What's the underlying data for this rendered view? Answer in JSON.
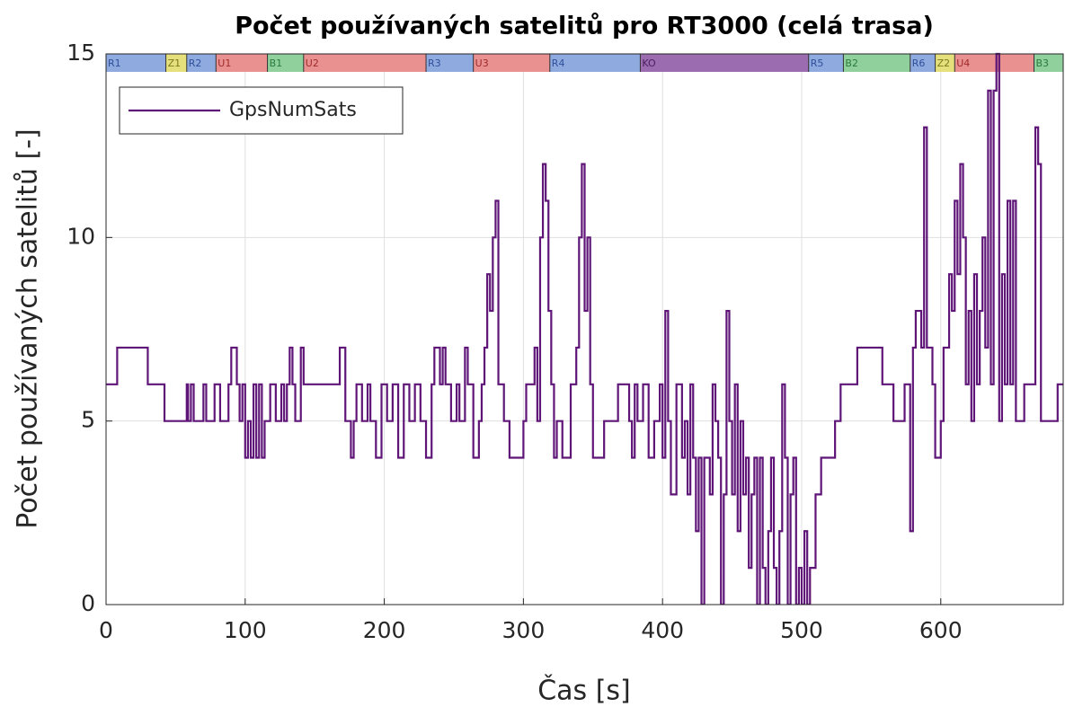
{
  "chart_data": {
    "type": "line",
    "title": "Počet používaných satelitů pro RT3000 (celá trasa)",
    "xlabel": "Čas [s]",
    "ylabel": "Počet používaných satelitů [-]",
    "xlim": [
      0,
      688
    ],
    "ylim": [
      0,
      15
    ],
    "xticks": [
      0,
      100,
      200,
      300,
      400,
      500,
      600
    ],
    "yticks": [
      0,
      5,
      10,
      15
    ],
    "grid": true,
    "legend": "upper left",
    "step": true,
    "series": [
      {
        "name": "GpsNumSats",
        "color": "#5e1577",
        "x": [
          0,
          8,
          30,
          42,
          58,
          59,
          61,
          63,
          70,
          72,
          78,
          82,
          88,
          90,
          94,
          96,
          98,
          100,
          102,
          104,
          106,
          108,
          110,
          112,
          114,
          118,
          122,
          126,
          128,
          130,
          132,
          134,
          136,
          140,
          142,
          168,
          172,
          176,
          178,
          180,
          184,
          188,
          190,
          194,
          198,
          202,
          206,
          210,
          214,
          218,
          222,
          226,
          230,
          234,
          236,
          240,
          242,
          244,
          248,
          252,
          254,
          258,
          260,
          264,
          268,
          270,
          272,
          274,
          276,
          278,
          280,
          282,
          286,
          290,
          300,
          302,
          308,
          310,
          312,
          314,
          316,
          318,
          320,
          322,
          324,
          328,
          334,
          338,
          340,
          342,
          344,
          346,
          348,
          350,
          358,
          368,
          376,
          378,
          380,
          382,
          386,
          390,
          394,
          398,
          400,
          402,
          404,
          406,
          410,
          414,
          416,
          418,
          420,
          422,
          424,
          426,
          428,
          430,
          434,
          436,
          438,
          440,
          442,
          444,
          446,
          448,
          450,
          452,
          454,
          456,
          458,
          460,
          462,
          464,
          466,
          468,
          470,
          472,
          474,
          476,
          478,
          480,
          482,
          484,
          486,
          488,
          490,
          492,
          494,
          496,
          498,
          500,
          502,
          504,
          506,
          510,
          514,
          524,
          528,
          540,
          558,
          566,
          574,
          578,
          580,
          582,
          586,
          588,
          590,
          594,
          596,
          600,
          602,
          606,
          608,
          610,
          612,
          614,
          616,
          618,
          620,
          622,
          624,
          626,
          628,
          630,
          632,
          634,
          636,
          638,
          640,
          642,
          644,
          646,
          648,
          650,
          652,
          654,
          660,
          668,
          670,
          672,
          684,
          688
        ],
        "values": [
          6,
          7,
          6,
          5,
          6,
          5,
          6,
          5,
          6,
          5,
          6,
          5,
          6,
          7,
          6,
          5,
          6,
          4,
          5,
          4,
          6,
          4,
          6,
          4,
          5,
          6,
          5,
          6,
          5,
          6,
          7,
          6,
          5,
          7,
          6,
          7,
          5,
          4,
          5,
          6,
          5,
          6,
          5,
          4,
          6,
          5,
          6,
          4,
          6,
          5,
          6,
          5,
          4,
          6,
          7,
          6,
          7,
          6,
          5,
          6,
          5,
          7,
          6,
          4,
          5,
          6,
          7,
          9,
          8,
          10,
          11,
          6,
          5,
          4,
          5,
          6,
          7,
          5,
          10,
          12,
          11,
          8,
          6,
          4,
          5,
          4,
          6,
          7,
          10,
          12,
          8,
          10,
          6,
          4,
          5,
          6,
          5,
          4,
          6,
          5,
          6,
          4,
          5,
          6,
          4,
          8,
          5,
          3,
          6,
          4,
          5,
          3,
          6,
          4,
          2,
          4,
          0,
          4,
          3,
          6,
          5,
          4,
          0,
          3,
          8,
          5,
          3,
          6,
          2,
          5,
          3,
          4,
          1,
          3,
          4,
          0,
          4,
          1,
          0,
          2,
          4,
          1,
          0,
          2,
          6,
          4,
          0,
          3,
          4,
          0,
          1,
          0,
          2,
          0,
          1,
          3,
          4,
          5,
          6,
          7,
          6,
          5,
          6,
          2,
          7,
          8,
          7,
          13,
          7,
          6,
          4,
          5,
          7,
          9,
          8,
          11,
          9,
          12,
          10,
          6,
          8,
          5,
          9,
          6,
          8,
          10,
          7,
          14,
          6,
          14,
          15,
          5,
          9,
          6,
          11,
          6,
          11,
          5,
          6,
          13,
          12,
          5,
          6,
          6
        ]
      }
    ],
    "segments": [
      {
        "label": "R1",
        "start": 0,
        "end": 43,
        "color": "#8eaadf"
      },
      {
        "label": "Z1",
        "start": 43,
        "end": 58,
        "color": "#e5e07c"
      },
      {
        "label": "R2",
        "start": 58,
        "end": 79,
        "color": "#8eaadf"
      },
      {
        "label": "U1",
        "start": 79,
        "end": 116,
        "color": "#e99191"
      },
      {
        "label": "B1",
        "start": 116,
        "end": 142,
        "color": "#8fd09d"
      },
      {
        "label": "U2",
        "start": 142,
        "end": 230,
        "color": "#e99191"
      },
      {
        "label": "R3",
        "start": 230,
        "end": 264,
        "color": "#8eaadf"
      },
      {
        "label": "U3",
        "start": 264,
        "end": 319,
        "color": "#e99191"
      },
      {
        "label": "R4",
        "start": 319,
        "end": 384,
        "color": "#8eaadf"
      },
      {
        "label": "KO",
        "start": 384,
        "end": 505,
        "color": "#9c6cb1"
      },
      {
        "label": "R5",
        "start": 505,
        "end": 530,
        "color": "#8eaadf"
      },
      {
        "label": "B2",
        "start": 530,
        "end": 578,
        "color": "#8fd09d"
      },
      {
        "label": "R6",
        "start": 578,
        "end": 596,
        "color": "#8eaadf"
      },
      {
        "label": "Z2",
        "start": 596,
        "end": 610,
        "color": "#e5e07c"
      },
      {
        "label": "U4",
        "start": 610,
        "end": 667,
        "color": "#e99191"
      },
      {
        "label": "B3",
        "start": 667,
        "end": 688,
        "color": "#8fd09d"
      }
    ]
  }
}
